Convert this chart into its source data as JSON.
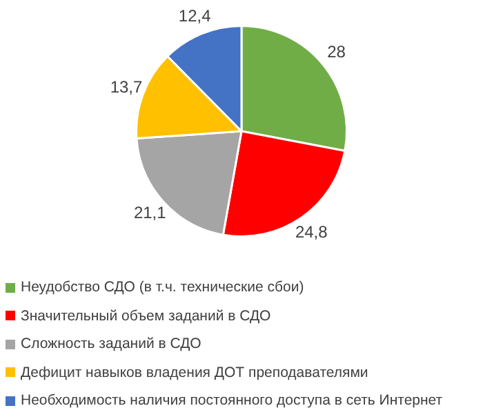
{
  "chart_data": {
    "type": "pie",
    "categories": [
      "Неудобство СДО (в т.ч. технические сбои)",
      "Значительный объем заданий в СДО",
      "Сложность заданий в СДО",
      "Дефицит навыков владения ДОТ преподавателями",
      "Необходимость наличия постоянного доступа в сеть Интернет"
    ],
    "values": [
      28,
      24.8,
      21.1,
      13.7,
      12.4
    ],
    "colors": [
      "#70ad47",
      "#ff0000",
      "#a5a5a5",
      "#ffc000",
      "#4472c4"
    ],
    "value_labels": [
      "28",
      "24,8",
      "21,1",
      "13,7",
      "12,4"
    ],
    "legend": "bottom"
  }
}
